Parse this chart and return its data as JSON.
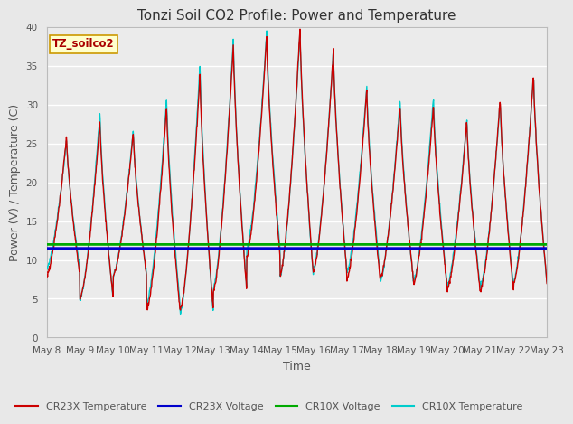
{
  "title": "Tonzi Soil CO2 Profile: Power and Temperature",
  "xlabel": "Time",
  "ylabel": "Power (V) / Temperature (C)",
  "ylim": [
    0,
    40
  ],
  "x_tick_labels": [
    "May 8",
    "May 9",
    "May 10",
    "May 11",
    "May 12",
    "May 13",
    "May 14",
    "May 15",
    "May 16",
    "May 17",
    "May 18",
    "May 19",
    "May 20",
    "May 21",
    "May 22",
    "May 23"
  ],
  "cr23x_voltage_value": 11.5,
  "cr10x_voltage_value": 12.0,
  "background_color": "#e8e8e8",
  "plot_bg_color": "#ebebeb",
  "grid_color": "#ffffff",
  "cr23x_temp_color": "#cc0000",
  "cr23x_voltage_color": "#0000cc",
  "cr10x_voltage_color": "#00aa00",
  "cr10x_temp_color": "#00cccc",
  "legend_label_cr23x_temp": "CR23X Temperature",
  "legend_label_cr23x_volt": "CR23X Voltage",
  "legend_label_cr10x_volt": "CR10X Voltage",
  "legend_label_cr10x_temp": "CR10X Temperature",
  "station_label": "TZ_soilco2",
  "title_fontsize": 11,
  "axis_label_fontsize": 9,
  "tick_fontsize": 7.5
}
